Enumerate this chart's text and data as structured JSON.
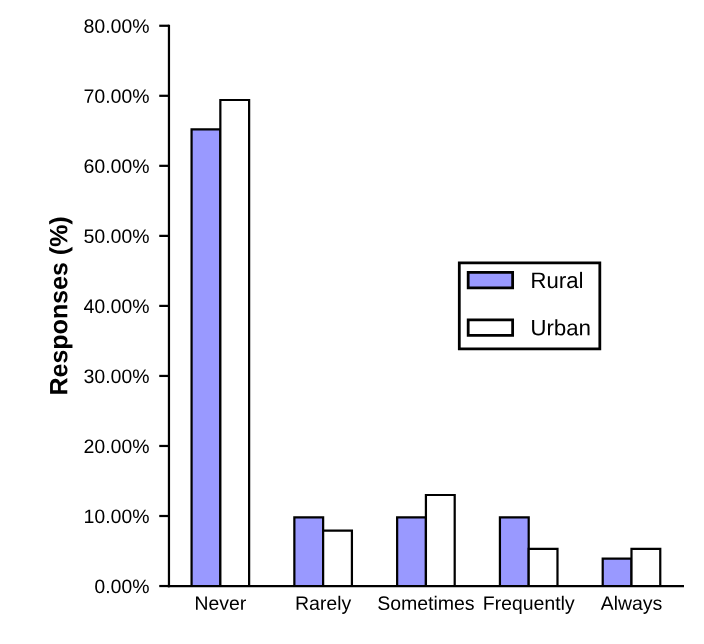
{
  "chart_data": {
    "type": "bar",
    "ylabel": "Responses (%)",
    "categories": [
      "Never",
      "Rarely",
      "Sometimes",
      "Frequently",
      "Always"
    ],
    "series": [
      {
        "name": "Rural",
        "color": "#9999ff",
        "values": [
          65.2,
          9.8,
          9.8,
          9.8,
          3.9
        ]
      },
      {
        "name": "Urban",
        "color": "#ffffff",
        "values": [
          69.4,
          7.9,
          13.0,
          5.3,
          5.3
        ]
      }
    ],
    "ylim": [
      0,
      80
    ],
    "yticks": [
      {
        "value": 0,
        "label": "0.00%"
      },
      {
        "value": 10,
        "label": "10.00%"
      },
      {
        "value": 20,
        "label": "20.00%"
      },
      {
        "value": 30,
        "label": "30.00%"
      },
      {
        "value": 40,
        "label": "40.00%"
      },
      {
        "value": 50,
        "label": "50.00%"
      },
      {
        "value": 60,
        "label": "60.00%"
      },
      {
        "value": 70,
        "label": "70.00%"
      },
      {
        "value": 80,
        "label": "80.00%"
      }
    ],
    "legend": "right",
    "grid": false
  }
}
